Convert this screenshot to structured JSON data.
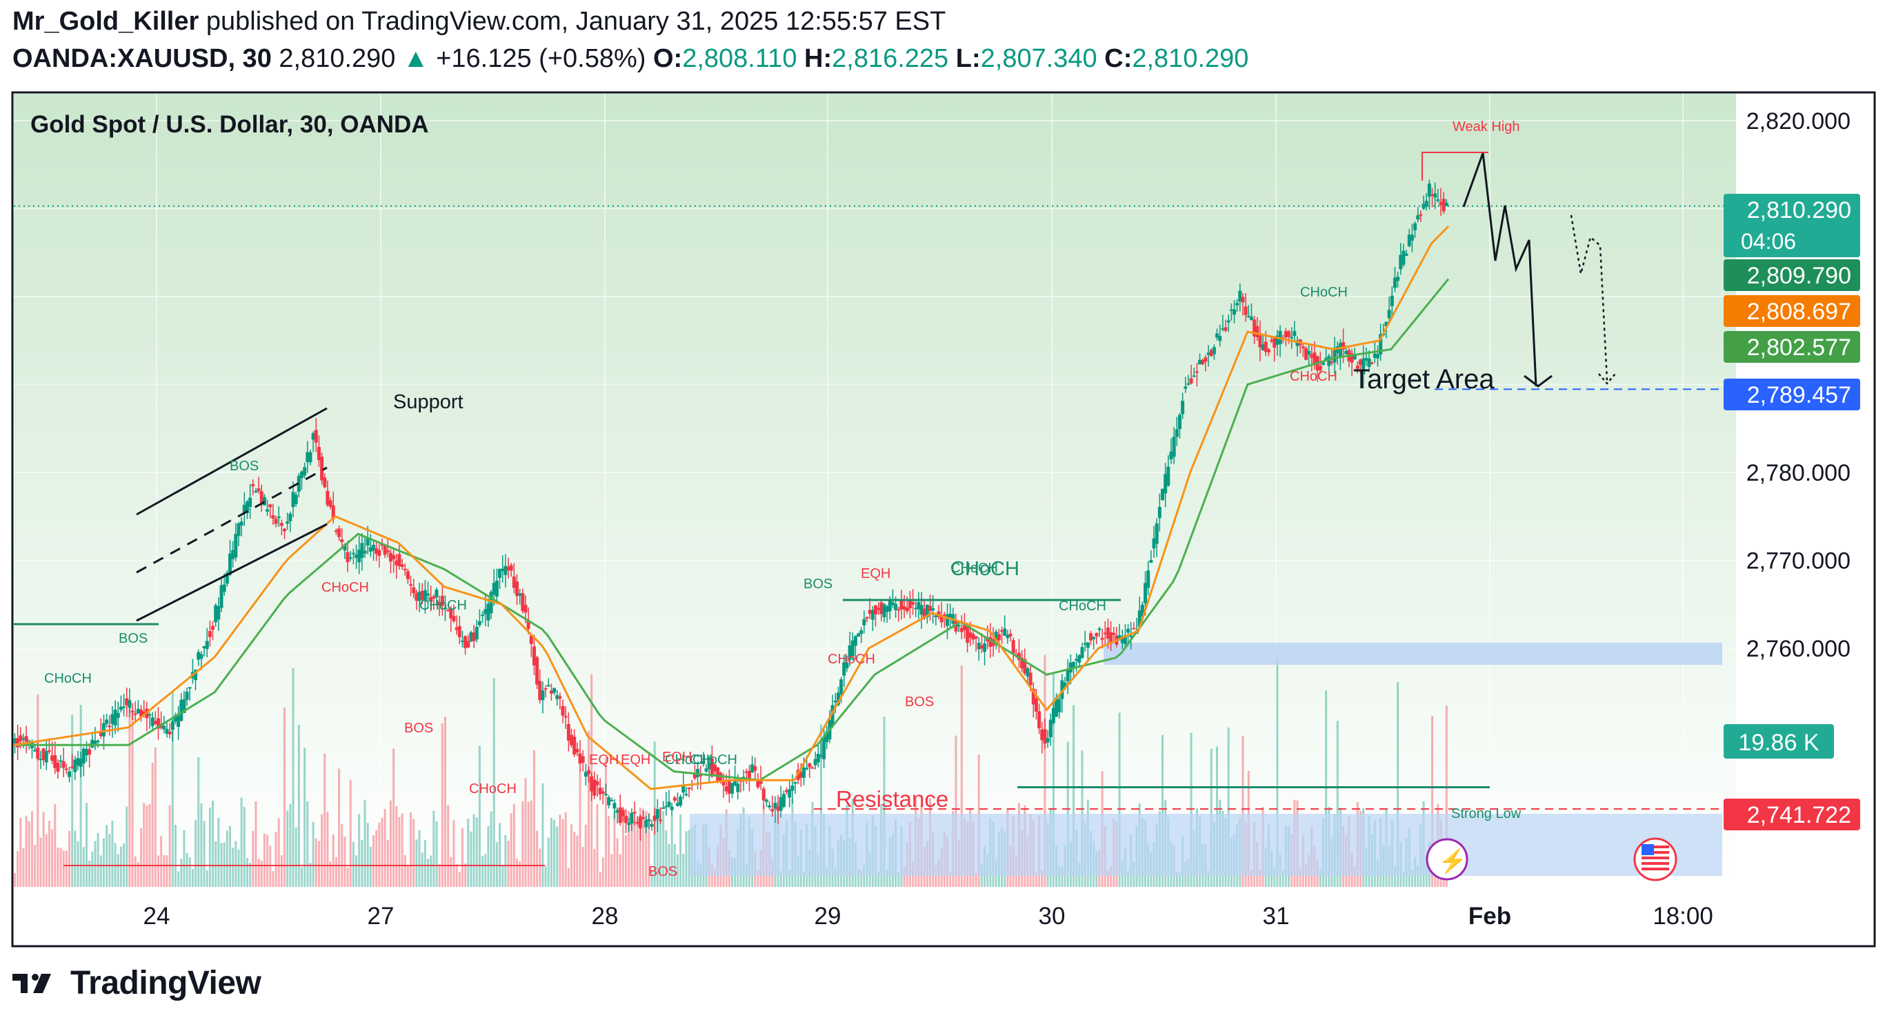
{
  "header": {
    "author": "Mr_Gold_Killer",
    "published_text": "published on TradingView.com, January 31, 2025 12:55:57 EST",
    "symbol": "OANDA:XAUUSD, 30",
    "last": "2,810.290",
    "change_arrow": "▲",
    "change": "+16.125 (+0.58%)",
    "o_label": "O:",
    "o": "2,808.110",
    "h_label": "H:",
    "h": "2,816.225",
    "l_label": "L:",
    "l": "2,807.340",
    "c_label": "C:",
    "c": "2,810.290"
  },
  "footer": {
    "brand": "TradingView",
    "logo_icon": "tradingview-logo-icon"
  },
  "colors": {
    "up": "#089981",
    "down": "#f23645",
    "ema_fast": "#f7931a",
    "ema_slow": "#4caf50",
    "zone": "#bbd4f5",
    "price_tag": "#22ab94",
    "blue_tag": "#2962ff",
    "red_tag": "#f23645",
    "orange_tag": "#f57c00",
    "green_tag": "#43a047"
  },
  "chart_data": {
    "type": "candlestick",
    "title": "Gold Spot / U.S. Dollar, 30, OANDA",
    "x_tick_labels": [
      "24",
      "27",
      "28",
      "29",
      "30",
      "31",
      "Feb",
      "18:00"
    ],
    "y_tick_labels": [
      "2,820.000",
      "2,780.000",
      "2,770.000",
      "2,760.000"
    ],
    "ylim": [
      2738,
      2825
    ],
    "grid": true,
    "price_tags": [
      {
        "value": 2810.29,
        "text": "2,810.290",
        "subtext": "04:06",
        "kind": "last"
      },
      {
        "value": 2809.79,
        "text": "2,809.790",
        "kind": "green"
      },
      {
        "value": 2808.697,
        "text": "2,808.697",
        "kind": "orange"
      },
      {
        "value": 2802.577,
        "text": "2,802.577",
        "kind": "lightgreen"
      },
      {
        "value": 2789.457,
        "text": "2,789.457",
        "kind": "blue"
      },
      {
        "value": 2741.722,
        "text": "2,741.722",
        "kind": "red"
      }
    ],
    "volume_tag": "19.86 K",
    "target_level": 2789.457,
    "resistance_level": 2741.722,
    "strong_low_level": 2744.2,
    "weak_high_level": 2817.0,
    "annotations": {
      "support": "Support",
      "resistance": "Resistance",
      "target_area": "Target Area",
      "weak_high": "Weak High",
      "strong_low": "Strong Low",
      "chochs": [
        "CHoCH",
        "CHoCH",
        "CHoCH",
        "CHoCH",
        "CHoCH",
        "CHoCH",
        "CHoCH",
        "CHoCH",
        "CHoCH",
        "CHoCH",
        "CHoCH"
      ],
      "bos": [
        "BOS",
        "BOS",
        "BOS",
        "BOS",
        "BOS",
        "BOS"
      ],
      "eqh": [
        "EQH",
        "EQH",
        "EQH",
        "EQH"
      ]
    },
    "price_path": [
      [
        0,
        2750
      ],
      [
        20,
        2746
      ],
      [
        40,
        2754
      ],
      [
        55,
        2750
      ],
      [
        70,
        2763
      ],
      [
        83,
        2778
      ],
      [
        95,
        2774
      ],
      [
        105,
        2784
      ],
      [
        112,
        2774
      ],
      [
        118,
        2770
      ],
      [
        125,
        2772
      ],
      [
        134,
        2770
      ],
      [
        140,
        2766
      ],
      [
        148,
        2766
      ],
      [
        158,
        2760
      ],
      [
        165,
        2764
      ],
      [
        172,
        2770
      ],
      [
        178,
        2765
      ],
      [
        184,
        2755
      ],
      [
        190,
        2755
      ],
      [
        196,
        2748
      ],
      [
        203,
        2744
      ],
      [
        212,
        2741
      ],
      [
        222,
        2740
      ],
      [
        232,
        2743
      ],
      [
        242,
        2747
      ],
      [
        250,
        2744
      ],
      [
        258,
        2746
      ],
      [
        265,
        2741
      ],
      [
        272,
        2745
      ],
      [
        282,
        2748
      ],
      [
        290,
        2758
      ],
      [
        298,
        2764
      ],
      [
        310,
        2765
      ],
      [
        320,
        2764
      ],
      [
        328,
        2763
      ],
      [
        337,
        2760
      ],
      [
        346,
        2762
      ],
      [
        354,
        2757
      ],
      [
        360,
        2749
      ],
      [
        368,
        2758
      ],
      [
        378,
        2762
      ],
      [
        385,
        2761
      ],
      [
        392,
        2762
      ],
      [
        400,
        2776
      ],
      [
        408,
        2789
      ],
      [
        418,
        2794
      ],
      [
        428,
        2800
      ],
      [
        436,
        2794
      ],
      [
        445,
        2796
      ],
      [
        455,
        2792
      ],
      [
        463,
        2794
      ],
      [
        470,
        2792
      ],
      [
        476,
        2794
      ],
      [
        484,
        2804
      ],
      [
        494,
        2812
      ],
      [
        500,
        2810
      ]
    ],
    "ema_fast_path": [
      [
        0,
        2749
      ],
      [
        40,
        2751
      ],
      [
        70,
        2759
      ],
      [
        95,
        2770
      ],
      [
        112,
        2775
      ],
      [
        134,
        2772
      ],
      [
        150,
        2767
      ],
      [
        170,
        2765
      ],
      [
        185,
        2760
      ],
      [
        200,
        2750
      ],
      [
        222,
        2744
      ],
      [
        250,
        2745
      ],
      [
        272,
        2745
      ],
      [
        298,
        2760
      ],
      [
        320,
        2764
      ],
      [
        340,
        2762
      ],
      [
        360,
        2753
      ],
      [
        378,
        2760
      ],
      [
        392,
        2762
      ],
      [
        410,
        2780
      ],
      [
        430,
        2796
      ],
      [
        460,
        2794
      ],
      [
        476,
        2795
      ],
      [
        494,
        2806
      ],
      [
        500,
        2808
      ]
    ],
    "ema_slow_path": [
      [
        0,
        2749
      ],
      [
        40,
        2749
      ],
      [
        70,
        2755
      ],
      [
        95,
        2766
      ],
      [
        120,
        2773
      ],
      [
        150,
        2769
      ],
      [
        185,
        2762
      ],
      [
        205,
        2752
      ],
      [
        230,
        2746
      ],
      [
        260,
        2745
      ],
      [
        280,
        2749
      ],
      [
        300,
        2757
      ],
      [
        330,
        2763
      ],
      [
        360,
        2757
      ],
      [
        385,
        2759
      ],
      [
        405,
        2768
      ],
      [
        430,
        2790
      ],
      [
        460,
        2793
      ],
      [
        480,
        2794
      ],
      [
        500,
        2802
      ]
    ]
  }
}
